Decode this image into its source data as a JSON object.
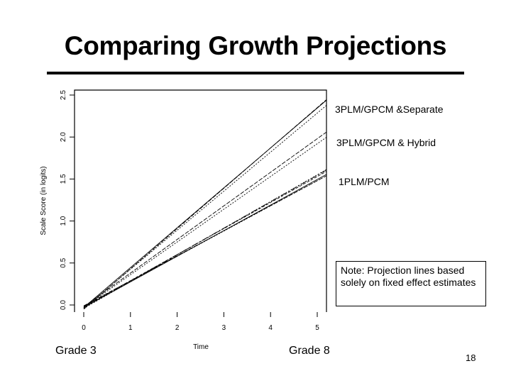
{
  "slide": {
    "title": "Comparing Growth Projections",
    "note": "Note: Projection lines based solely on fixed effect estimates",
    "grade_start": "Grade 3",
    "grade_end": "Grade 8",
    "page_number": "18"
  },
  "chart_data": {
    "type": "line",
    "title": "",
    "xlabel": "Time",
    "ylabel": "Scale Score (in logits)",
    "xlim": [
      0,
      5
    ],
    "ylim": [
      0,
      2.5
    ],
    "x_ticks": [
      0,
      1,
      2,
      3,
      4,
      5
    ],
    "y_ticks": [
      0.0,
      0.5,
      1.0,
      1.5,
      2.0,
      2.5
    ],
    "x_tick_labels": [
      "0",
      "1",
      "2",
      "3",
      "4",
      "5"
    ],
    "y_tick_labels": [
      "0.0",
      "0.5",
      "1.0",
      "1.5",
      "2.0",
      "2.5"
    ],
    "grid": false,
    "series_groups": [
      {
        "name": "3PLM/GPCM &Separate",
        "lines": [
          [
            -0.03,
            0.475
          ],
          [
            -0.05,
            0.48
          ],
          [
            -0.04,
            0.465
          ]
        ]
      },
      {
        "name": "3PLM/GPCM & Hybrid",
        "lines": [
          [
            -0.02,
            0.4
          ],
          [
            -0.03,
            0.39
          ]
        ]
      },
      {
        "name": "1PLM/PCM",
        "lines": [
          [
            -0.04,
            0.318
          ],
          [
            -0.03,
            0.315
          ],
          [
            -0.02,
            0.31
          ],
          [
            -0.03,
            0.305
          ],
          [
            -0.01,
            0.298
          ],
          [
            -0.02,
            0.3
          ]
        ]
      }
    ]
  }
}
